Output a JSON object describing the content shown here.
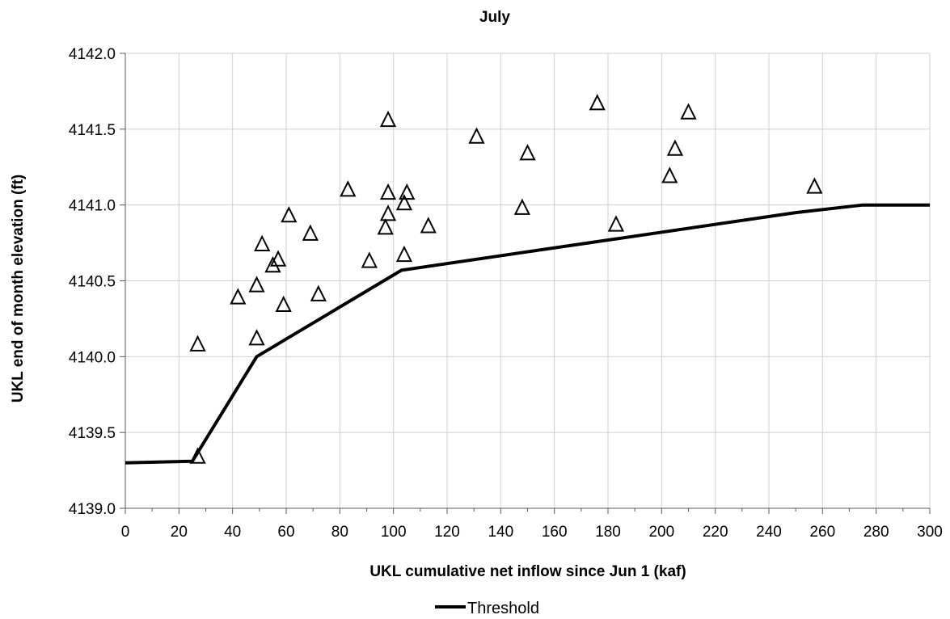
{
  "chart_data": {
    "type": "scatter",
    "title": "July",
    "xlabel": "UKL cumulative net inflow since Jun 1 (kaf)",
    "ylabel": "UKL end of month elevation (ft)",
    "xlim": [
      0,
      300
    ],
    "ylim": [
      4139.0,
      4142.0
    ],
    "x_ticks": [
      "0",
      "20",
      "40",
      "60",
      "80",
      "100",
      "120",
      "140",
      "160",
      "180",
      "200",
      "220",
      "240",
      "260",
      "280",
      "300"
    ],
    "y_ticks": [
      "4139.0",
      "4139.5",
      "4140.0",
      "4140.5",
      "4141.0",
      "4141.5",
      "4142.0"
    ],
    "grid": true,
    "legend_position": "bottom",
    "series": [
      {
        "marker": "open-triangle",
        "points": [
          [
            27,
            4140.08
          ],
          [
            27,
            4139.34
          ],
          [
            42,
            4140.39
          ],
          [
            49,
            4140.47
          ],
          [
            49,
            4140.12
          ],
          [
            51,
            4140.74
          ],
          [
            55,
            4140.6
          ],
          [
            57,
            4140.64
          ],
          [
            59,
            4140.34
          ],
          [
            61,
            4140.93
          ],
          [
            69,
            4140.81
          ],
          [
            72,
            4140.41
          ],
          [
            83,
            4141.1
          ],
          [
            91,
            4140.63
          ],
          [
            97,
            4140.85
          ],
          [
            98,
            4140.94
          ],
          [
            98,
            4141.08
          ],
          [
            98,
            4141.56
          ],
          [
            104,
            4140.67
          ],
          [
            104,
            4141.01
          ],
          [
            105,
            4141.08
          ],
          [
            113,
            4140.86
          ],
          [
            131,
            4141.45
          ],
          [
            148,
            4140.98
          ],
          [
            150,
            4141.34
          ],
          [
            176,
            4141.67
          ],
          [
            183,
            4140.87
          ],
          [
            203,
            4141.19
          ],
          [
            205,
            4141.37
          ],
          [
            210,
            4141.61
          ],
          [
            257,
            4141.12
          ]
        ]
      },
      {
        "name": "Threshold",
        "color": "#000000",
        "points": [
          [
            0,
            4139.3
          ],
          [
            25,
            4139.31
          ],
          [
            49,
            4140.0
          ],
          [
            103,
            4140.57
          ],
          [
            250,
            4140.95
          ],
          [
            275,
            4141.0
          ],
          [
            300,
            4141.0
          ]
        ]
      }
    ]
  }
}
